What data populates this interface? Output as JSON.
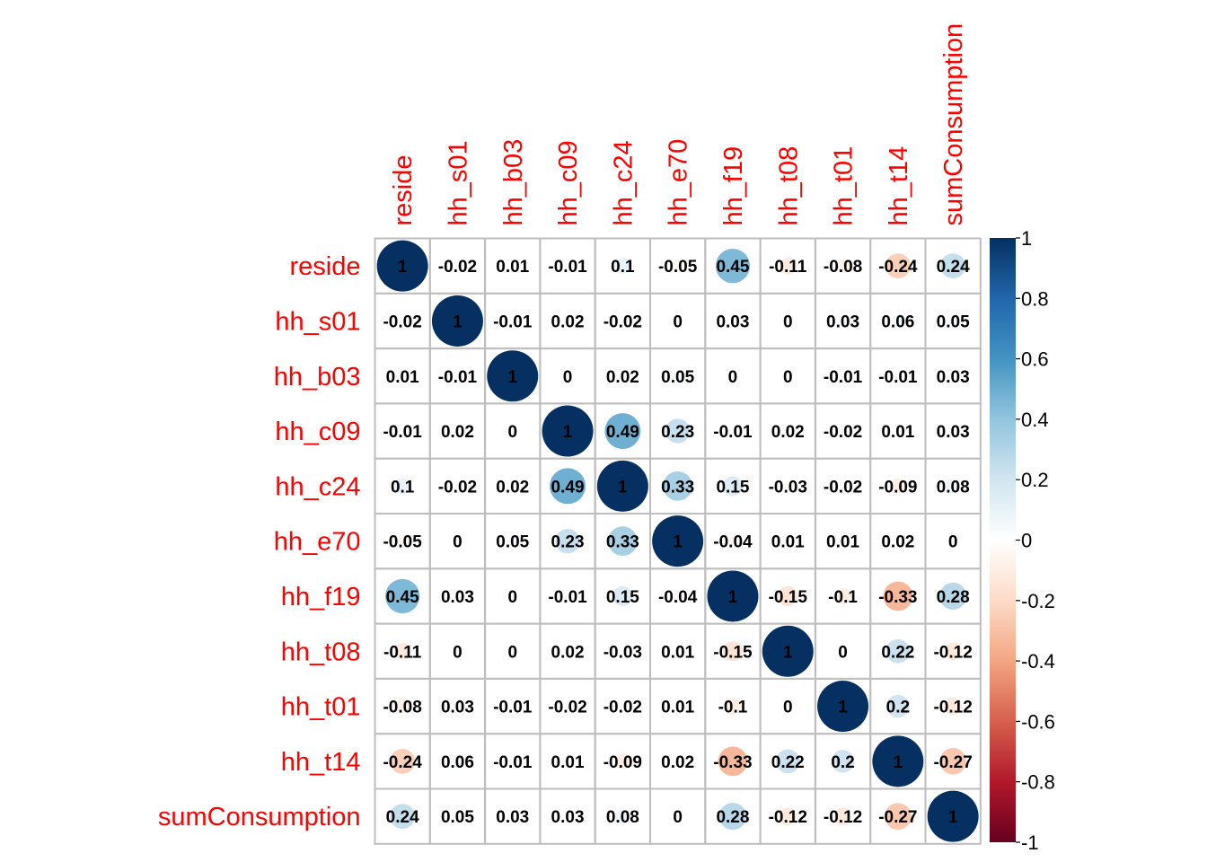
{
  "chart_data": {
    "type": "heatmap",
    "title": "",
    "variables": [
      "reside",
      "hh_s01",
      "hh_b03",
      "hh_c09",
      "hh_c24",
      "hh_e70",
      "hh_f19",
      "hh_t08",
      "hh_t01",
      "hh_t14",
      "sumConsumption"
    ],
    "matrix": [
      [
        1,
        -0.02,
        0.01,
        -0.01,
        0.1,
        -0.05,
        0.45,
        -0.11,
        -0.08,
        -0.24,
        0.24
      ],
      [
        -0.02,
        1,
        -0.01,
        0.02,
        -0.02,
        0,
        0.03,
        0,
        0.03,
        0.06,
        0.05
      ],
      [
        0.01,
        -0.01,
        1,
        0,
        0.02,
        0.05,
        0,
        0,
        -0.01,
        -0.01,
        0.03
      ],
      [
        -0.01,
        0.02,
        0,
        1,
        0.49,
        0.23,
        -0.01,
        0.02,
        -0.02,
        0.01,
        0.03
      ],
      [
        0.1,
        -0.02,
        0.02,
        0.49,
        1,
        0.33,
        0.15,
        -0.03,
        -0.02,
        -0.09,
        0.08
      ],
      [
        -0.05,
        0,
        0.05,
        0.23,
        0.33,
        1,
        -0.04,
        0.01,
        0.01,
        0.02,
        0
      ],
      [
        0.45,
        0.03,
        0,
        -0.01,
        0.15,
        -0.04,
        1,
        -0.15,
        -0.1,
        -0.33,
        0.28
      ],
      [
        -0.11,
        0,
        0,
        0.02,
        -0.03,
        0.01,
        -0.15,
        1,
        0,
        0.22,
        -0.12
      ],
      [
        -0.08,
        0.03,
        -0.01,
        -0.02,
        -0.02,
        0.01,
        -0.1,
        0,
        1,
        0.2,
        -0.12
      ],
      [
        -0.24,
        0.06,
        -0.01,
        0.01,
        -0.09,
        0.02,
        -0.33,
        0.22,
        0.2,
        1,
        -0.27
      ],
      [
        0.24,
        0.05,
        0.03,
        0.03,
        0.08,
        0,
        0.28,
        -0.12,
        -0.12,
        -0.27,
        1
      ]
    ],
    "color_scale": {
      "range": [
        -1,
        1
      ],
      "ticks": [
        "1",
        "0.8",
        "0.6",
        "0.4",
        "0.2",
        "0",
        "-0.2",
        "-0.4",
        "-0.6",
        "-0.8",
        "-1"
      ],
      "tick_values": [
        1,
        0.8,
        0.6,
        0.4,
        0.2,
        0,
        -0.2,
        -0.4,
        -0.6,
        -0.8,
        -1
      ],
      "colors": [
        "#67001F",
        "#B2182B",
        "#D6604D",
        "#F4A582",
        "#FDDBC7",
        "#FFFFFF",
        "#D1E5F0",
        "#92C5DE",
        "#4393C3",
        "#2166AC",
        "#053061"
      ],
      "legend": "right"
    },
    "grid": true,
    "label_color": "#ff0000"
  }
}
